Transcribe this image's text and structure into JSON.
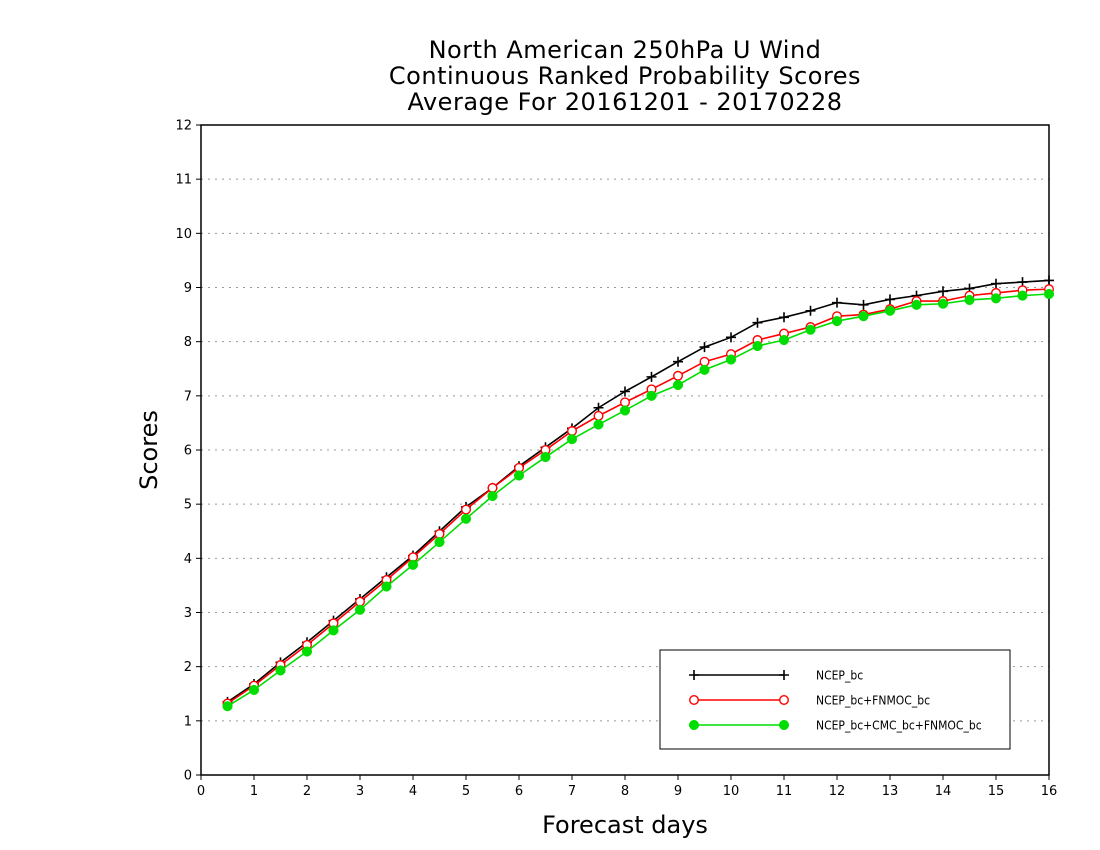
{
  "chart_data": {
    "type": "line",
    "title": [
      "North American 250hPa U Wind",
      "Continuous Ranked Probability Scores",
      "Average For 20161201 - 20170228"
    ],
    "xlabel": "Forecast days",
    "ylabel": "Scores",
    "xlim": [
      0,
      16
    ],
    "ylim": [
      0,
      12
    ],
    "xticks": [
      "0",
      "1",
      "2",
      "3",
      "4",
      "5",
      "6",
      "7",
      "8",
      "9",
      "10",
      "11",
      "12",
      "13",
      "14",
      "15",
      "16"
    ],
    "yticks": [
      "0",
      "1",
      "2",
      "3",
      "4",
      "5",
      "6",
      "7",
      "8",
      "9",
      "10",
      "11",
      "12"
    ],
    "grid": true,
    "legend_position": "bottom-right",
    "x": [
      0.5,
      1,
      1.5,
      2,
      2.5,
      3,
      3.5,
      4,
      4.5,
      5,
      5.5,
      6,
      6.5,
      7,
      7.5,
      8,
      8.5,
      9,
      9.5,
      10,
      10.5,
      11,
      11.5,
      12,
      12.5,
      13,
      13.5,
      14,
      14.5,
      15,
      15.5,
      16
    ],
    "series": [
      {
        "name": "NCEP_bc",
        "color": "#000000",
        "marker": "plus",
        "values": [
          1.35,
          1.68,
          2.08,
          2.45,
          2.85,
          3.25,
          3.65,
          4.05,
          4.5,
          4.95,
          5.3,
          5.7,
          6.05,
          6.4,
          6.78,
          7.08,
          7.35,
          7.63,
          7.9,
          8.08,
          8.35,
          8.45,
          8.57,
          8.72,
          8.68,
          8.78,
          8.85,
          8.93,
          8.98,
          9.07,
          9.1,
          9.13
        ]
      },
      {
        "name": "NCEP_bc+FNMOC_bc",
        "color": "#ff0000",
        "marker": "open-circle",
        "values": [
          1.32,
          1.65,
          2.03,
          2.4,
          2.8,
          3.2,
          3.6,
          4.02,
          4.45,
          4.9,
          5.3,
          5.67,
          6.0,
          6.35,
          6.63,
          6.88,
          7.12,
          7.37,
          7.63,
          7.77,
          8.03,
          8.15,
          8.27,
          8.47,
          8.5,
          8.6,
          8.75,
          8.75,
          8.85,
          8.9,
          8.95,
          8.97
        ]
      },
      {
        "name": "NCEP_bc+CMC_bc+FNMOC_bc",
        "color": "#00dd00",
        "marker": "filled-circle",
        "values": [
          1.27,
          1.57,
          1.93,
          2.28,
          2.67,
          3.05,
          3.48,
          3.88,
          4.3,
          4.73,
          5.15,
          5.53,
          5.87,
          6.2,
          6.47,
          6.73,
          7.0,
          7.2,
          7.48,
          7.67,
          7.92,
          8.03,
          8.22,
          8.38,
          8.47,
          8.57,
          8.68,
          8.7,
          8.77,
          8.8,
          8.85,
          8.88
        ]
      }
    ]
  }
}
